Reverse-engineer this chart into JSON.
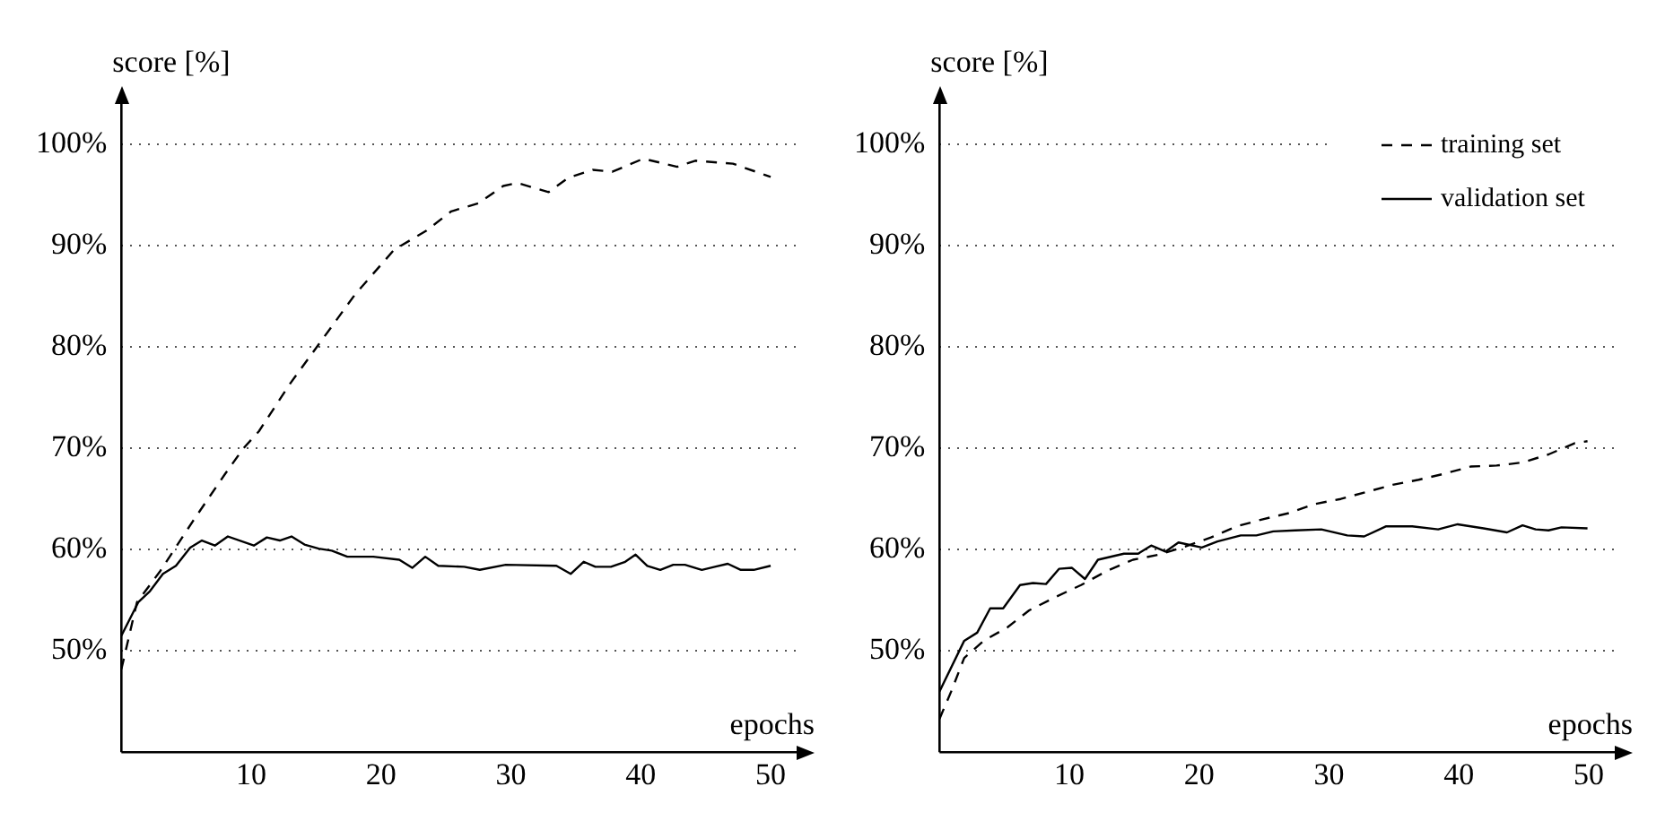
{
  "chart_data": [
    {
      "type": "line",
      "xlabel": "epochs",
      "ylabel": "score [%]",
      "xlim": [
        0,
        52
      ],
      "xticks": [
        10,
        20,
        30,
        40,
        50
      ],
      "ylim": [
        40,
        104
      ],
      "yticks": [
        {
          "value": 50,
          "label": "50%"
        },
        {
          "value": 60,
          "label": "60%"
        },
        {
          "value": 70,
          "label": "70%"
        },
        {
          "value": 80,
          "label": "80%"
        },
        {
          "value": 90,
          "label": "90%"
        },
        {
          "value": 100,
          "label": "100%"
        }
      ],
      "grid": "y",
      "marker": "none",
      "series": [
        {
          "color": "#000000",
          "line_style": "dashed",
          "x": [
            0,
            1.2,
            3,
            5.5,
            8,
            9.4,
            10.6,
            13,
            15.5,
            18,
            21,
            23.5,
            25.4,
            27.5,
            29.4,
            30.5,
            32.9,
            34.4,
            36.3,
            37.8,
            40.2,
            42.8,
            44.2,
            47.1,
            50
          ],
          "values": [
            48.2,
            54.8,
            57.9,
            62.8,
            67.5,
            70,
            71.7,
            76.4,
            80.8,
            85.2,
            89.6,
            91.5,
            93.4,
            94.2,
            95.9,
            96.2,
            95.3,
            96.7,
            97.5,
            97.3,
            98.6,
            97.8,
            98.4,
            98.1,
            96.8
          ]
        },
        {
          "color": "#000000",
          "line_style": "solid",
          "x": [
            0,
            1.3,
            2.2,
            3.2,
            4.2,
            5.3,
            6.2,
            7.2,
            8.2,
            10.2,
            11.2,
            12.2,
            13.1,
            14.1,
            15.2,
            16.2,
            17.4,
            19.4,
            21.4,
            22.4,
            23.4,
            24.4,
            26.4,
            27.6,
            29.6,
            33.5,
            34.6,
            35.6,
            36.5,
            37.7,
            38.8,
            39.6,
            40.5,
            41.5,
            42.5,
            43.4,
            44.7,
            45.7,
            46.7,
            47.7,
            48.7,
            50
          ],
          "values": [
            51.5,
            54.8,
            55.9,
            57.6,
            58.4,
            60.2,
            60.9,
            60.4,
            61.3,
            60.4,
            61.2,
            60.9,
            61.3,
            60.5,
            60.1,
            59.9,
            59.3,
            59.3,
            59,
            58.2,
            59.3,
            58.4,
            58.3,
            58,
            58.5,
            58.4,
            57.6,
            58.8,
            58.3,
            58.3,
            58.8,
            59.5,
            58.4,
            58,
            58.5,
            58.5,
            58,
            58.3,
            58.6,
            58,
            58,
            58.4
          ]
        }
      ]
    },
    {
      "type": "line",
      "xlabel": "epochs",
      "ylabel": "score [%]",
      "xlim": [
        0,
        52
      ],
      "xticks": [
        10,
        20,
        30,
        40,
        50
      ],
      "ylim": [
        40,
        104
      ],
      "yticks": [
        {
          "value": 50,
          "label": "50%"
        },
        {
          "value": 60,
          "label": "60%"
        },
        {
          "value": 70,
          "label": "70%"
        },
        {
          "value": 80,
          "label": "80%"
        },
        {
          "value": 90,
          "label": "90%"
        },
        {
          "value": 100,
          "label": "100%"
        }
      ],
      "grid": "y",
      "marker": "none",
      "legend": "top right",
      "series": [
        {
          "name": "training set",
          "color": "#000000",
          "line_style": "dashed",
          "x": [
            0,
            0.9,
            1.9,
            3.4,
            5.2,
            6.9,
            8.9,
            10.9,
            12.9,
            14.9,
            16.9,
            18.9,
            20.9,
            22.9,
            24.9,
            26.9,
            28.9,
            30.9,
            32.9,
            34.9,
            36.9,
            38.9,
            40.9,
            42.9,
            44.9,
            46.9,
            48.9,
            49.9
          ],
          "values": [
            43.3,
            46,
            49.3,
            51,
            52.3,
            54,
            55.3,
            56.5,
            57.9,
            59,
            59.5,
            60.3,
            61.2,
            62.3,
            63,
            63.6,
            64.5,
            65,
            65.7,
            66.4,
            66.9,
            67.5,
            68.2,
            68.3,
            68.6,
            69.4,
            70.5,
            70.7
          ]
        },
        {
          "name": "validation set",
          "color": "#000000",
          "line_style": "solid",
          "x": [
            0,
            1.9,
            2.9,
            3.9,
            4.9,
            6.2,
            7.2,
            8.2,
            9.2,
            10.2,
            11.2,
            12.2,
            14.2,
            15.3,
            16.3,
            17.4,
            18.4,
            20.2,
            21.4,
            23.2,
            24.4,
            25.7,
            27.4,
            29.4,
            31.4,
            32.7,
            34.4,
            36.4,
            38.4,
            39.9,
            41.9,
            43.7,
            44.9,
            45.9,
            46.9,
            47.9,
            49.9
          ],
          "values": [
            46,
            51,
            51.8,
            54.2,
            54.2,
            56.5,
            56.7,
            56.6,
            58.1,
            58.2,
            57.1,
            59,
            59.6,
            59.6,
            60.4,
            59.8,
            60.7,
            60.2,
            60.8,
            61.4,
            61.4,
            61.8,
            61.9,
            62,
            61.4,
            61.3,
            62.3,
            62.3,
            62,
            62.5,
            62.1,
            61.7,
            62.4,
            62,
            61.9,
            62.2,
            62.1
          ]
        }
      ]
    }
  ]
}
